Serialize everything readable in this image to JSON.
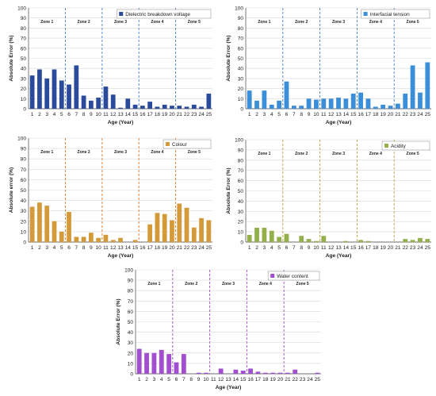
{
  "chart_data": [
    {
      "type": "bar",
      "ylabel": "Absolute Error (%)",
      "xlabel": "Age (Year)",
      "ylim": [
        0,
        100
      ],
      "yticks": [
        0,
        10,
        20,
        30,
        40,
        50,
        60,
        70,
        80,
        90,
        100
      ],
      "categories": [
        "1",
        "2",
        "3",
        "4",
        "5",
        "6",
        "7",
        "8",
        "9",
        "10",
        "11",
        "12",
        "13",
        "14",
        "15",
        "16",
        "17",
        "18",
        "19",
        "20",
        "21",
        "22",
        "23",
        "24",
        "25"
      ],
      "series": [
        {
          "name": "Dielectric breakdown voltage",
          "color": "#2a4a9c",
          "values": [
            33,
            39,
            30,
            39,
            28,
            24,
            43,
            13,
            8,
            11,
            22,
            14,
            1,
            10,
            4,
            3,
            7,
            2,
            4,
            3,
            3,
            2,
            4,
            2,
            15
          ]
        }
      ],
      "zones": [
        "Zone 1",
        "Zone 2",
        "Zone 3",
        "Zone 4",
        "Zone 5"
      ],
      "zone_color": "#4a7fc8",
      "legend": "top-right"
    },
    {
      "type": "bar",
      "ylabel": "Absolute Error (%)",
      "xlabel": "Age (Year)",
      "ylim": [
        0,
        100
      ],
      "yticks": [
        0,
        10,
        20,
        30,
        40,
        50,
        60,
        70,
        80,
        90,
        100
      ],
      "categories": [
        "1",
        "2",
        "3",
        "4",
        "5",
        "6",
        "7",
        "8",
        "9",
        "10",
        "11",
        "12",
        "13",
        "14",
        "15",
        "16",
        "17",
        "18",
        "19",
        "20",
        "21",
        "22",
        "23",
        "24",
        "25"
      ],
      "series": [
        {
          "name": "Interfacial tension",
          "color": "#3b8fd9",
          "values": [
            18,
            8,
            18,
            4,
            8,
            27,
            3,
            3,
            10,
            9,
            10,
            10,
            11,
            10,
            15,
            16,
            10,
            2,
            4,
            3,
            5,
            15,
            43,
            16,
            46
          ]
        }
      ],
      "zones": [
        "Zone 1",
        "Zone 2",
        "Zone 3",
        "Zone 4",
        "Zone 5"
      ],
      "zone_color": "#4a7fc8",
      "legend": "top-right"
    },
    {
      "type": "bar",
      "ylabel": "Absolute error (%)",
      "xlabel": "Age (Year)",
      "ylim": [
        0,
        100
      ],
      "yticks": [
        0,
        10,
        20,
        30,
        40,
        50,
        60,
        70,
        80,
        90,
        100
      ],
      "categories": [
        "1",
        "2",
        "3",
        "4",
        "5",
        "6",
        "7",
        "8",
        "9",
        "10",
        "11",
        "12",
        "13",
        "14",
        "15",
        "16",
        "17",
        "18",
        "19",
        "20",
        "21",
        "22",
        "23",
        "24",
        "25"
      ],
      "series": [
        {
          "name": "Colour",
          "color": "#d49a3a",
          "values": [
            34,
            38,
            35,
            20,
            10,
            29,
            5,
            5,
            9,
            4,
            7,
            2,
            4,
            0,
            2,
            0,
            17,
            28,
            27,
            21,
            37,
            33,
            14,
            23,
            21
          ]
        }
      ],
      "zones": [
        "Zone 1",
        "Zone 2",
        "Zone 3",
        "Zone 4",
        "Zone 5"
      ],
      "zone_color": "#d9782a",
      "legend": "top-right"
    },
    {
      "type": "bar",
      "ylabel": "Absolute Error (%)",
      "xlabel": "Age (Year)",
      "ylim": [
        0,
        100
      ],
      "yticks": [
        0,
        10,
        20,
        30,
        40,
        50,
        60,
        70,
        80,
        90,
        100
      ],
      "categories": [
        "1",
        "2",
        "3",
        "4",
        "5",
        "6",
        "7",
        "8",
        "9",
        "10",
        "11",
        "12",
        "13",
        "14",
        "15",
        "16",
        "17",
        "18",
        "19",
        "20",
        "21",
        "22",
        "23",
        "24",
        "25"
      ],
      "series": [
        {
          "name": "Acidity",
          "color": "#93b04a",
          "values": [
            7,
            14,
            14,
            11,
            5,
            8,
            0,
            6,
            3,
            1,
            6,
            0,
            0,
            1,
            0,
            2,
            1,
            0,
            0,
            0,
            0,
            3,
            2,
            4,
            3
          ]
        }
      ],
      "zones": [
        "Zone 1",
        "Zone 2",
        "Zone 3",
        "Zone 4",
        "Zone 5"
      ],
      "zone_color": "#b8a04a",
      "legend": "top-right"
    },
    {
      "type": "bar",
      "ylabel": "Absolute Error (%)",
      "xlabel": "Age (Year)",
      "ylim": [
        0,
        100
      ],
      "yticks": [
        0,
        10,
        20,
        30,
        40,
        50,
        60,
        70,
        80,
        90,
        100
      ],
      "categories": [
        "1",
        "2",
        "3",
        "4",
        "5",
        "6",
        "7",
        "8",
        "9",
        "10",
        "11",
        "12",
        "13",
        "14",
        "15",
        "16",
        "17",
        "18",
        "19",
        "20",
        "21",
        "22",
        "23",
        "24",
        "25"
      ],
      "series": [
        {
          "name": "Water content",
          "color": "#a24fcf",
          "values": [
            24,
            20,
            20,
            23,
            19,
            11,
            19,
            0,
            1,
            1,
            0,
            5,
            0,
            4,
            3,
            5,
            2,
            1,
            1,
            1,
            1,
            4,
            0,
            0,
            1
          ]
        }
      ],
      "zones": [
        "Zone 1",
        "Zone 2",
        "Zone 3",
        "Zone 4",
        "Zone 5"
      ],
      "zone_color": "#a24fcf",
      "legend": "top-right"
    }
  ]
}
